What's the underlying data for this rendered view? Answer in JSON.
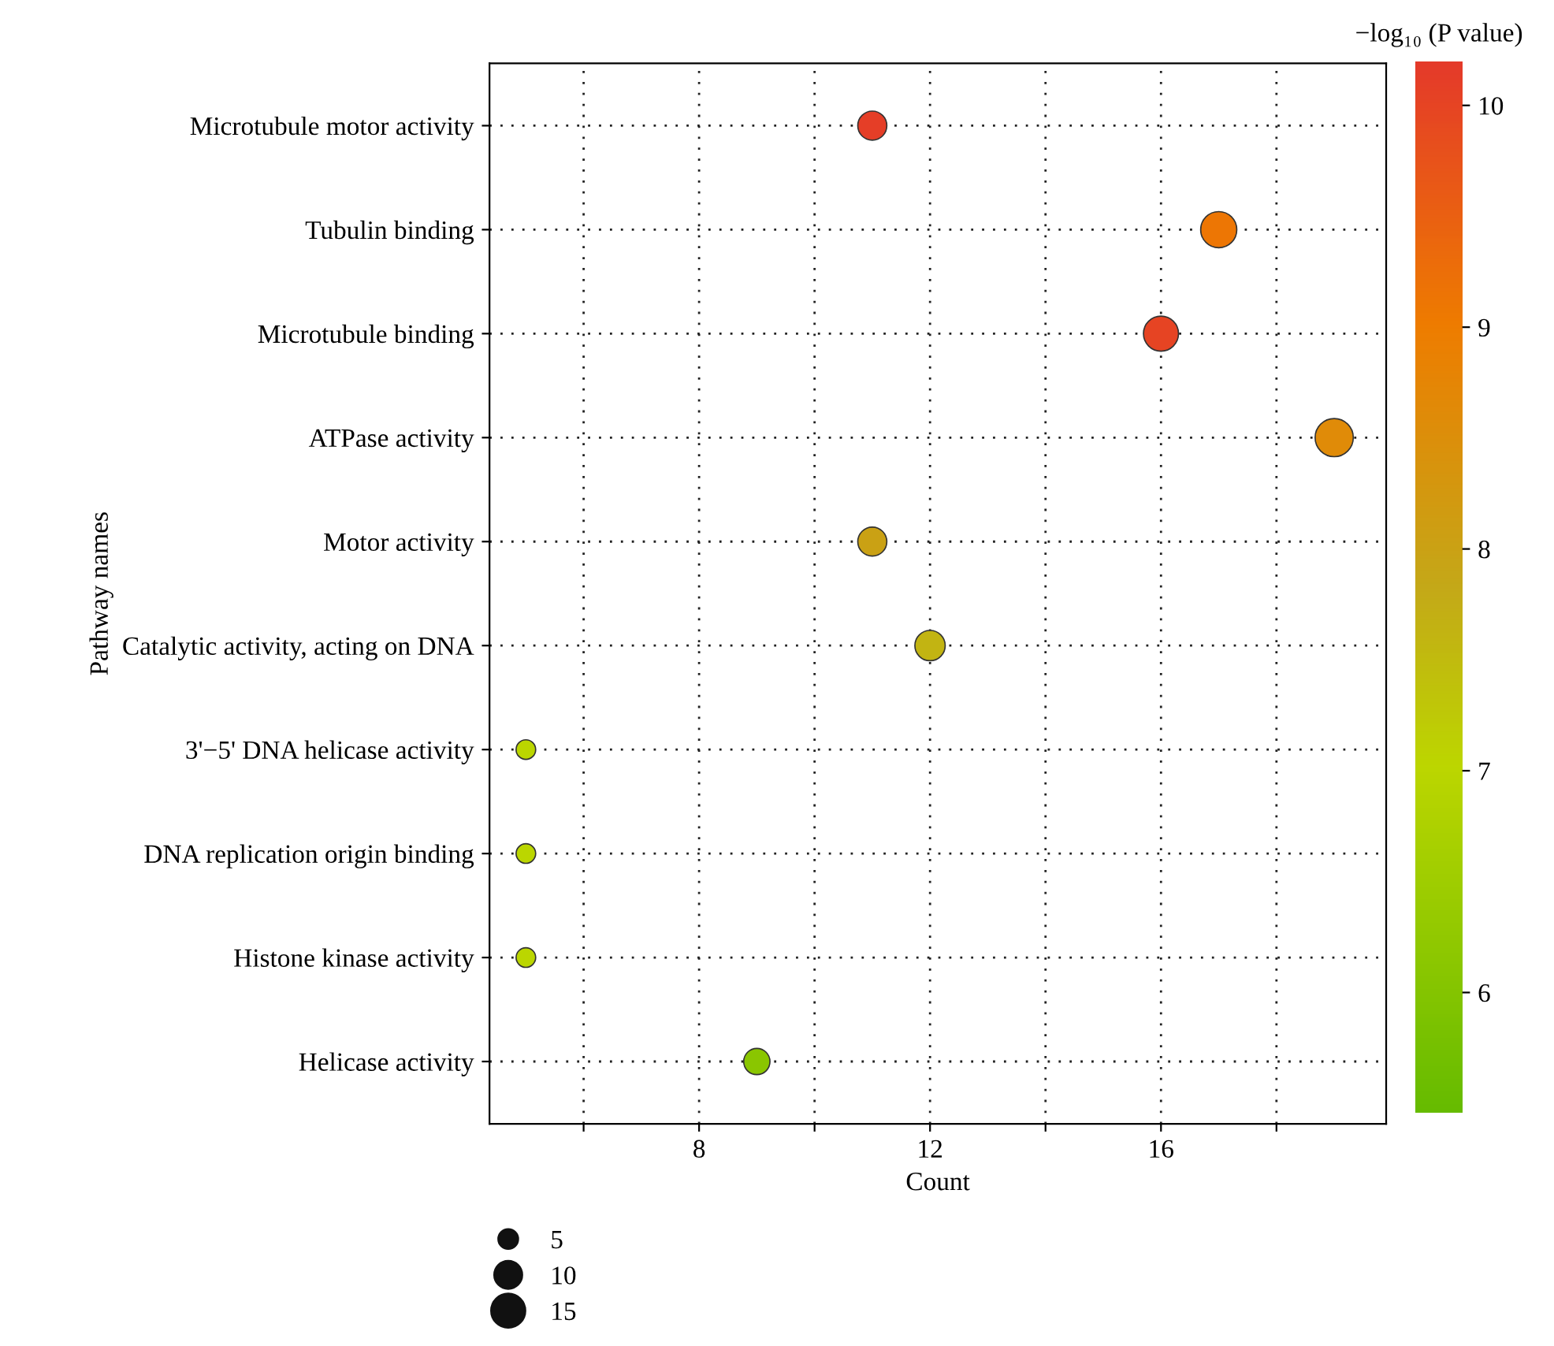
{
  "chart_data": {
    "type": "bubble",
    "orientation": "horizontal",
    "xlabel": "Count",
    "ylabel": "Pathway names",
    "clabel": "−log₁₀ (P value)",
    "categories": [
      "Microtubule motor activity",
      "Tubulin binding",
      "Microtubule binding",
      "ATPase activity",
      "Motor activity",
      "Catalytic activity, acting on DNA",
      "3'−5' DNA helicase activity",
      "DNA replication origin binding",
      "Histone kinase activity",
      "Helicase activity"
    ],
    "values": [
      11,
      17,
      16,
      19,
      11,
      12,
      5,
      5,
      5,
      9
    ],
    "sizes": [
      11,
      17,
      16,
      19,
      11,
      12,
      5,
      5,
      5,
      9
    ],
    "cvalues": [
      10.1,
      9.1,
      10.0,
      8.6,
      8.0,
      7.6,
      7.0,
      7.0,
      7.0,
      6.1
    ],
    "size_legend": [
      5,
      10,
      15
    ],
    "xlim": [
      4.37,
      19.9
    ],
    "xticks": [
      {
        "value": 6,
        "label": null
      },
      8,
      {
        "value": 10,
        "label": null
      },
      12,
      {
        "value": 14,
        "label": null
      },
      16,
      {
        "value": 18,
        "label": null
      }
    ],
    "clim": [
      5.45,
      10.19
    ],
    "cticks": [
      6,
      7,
      8,
      9,
      10
    ],
    "grid": true
  }
}
